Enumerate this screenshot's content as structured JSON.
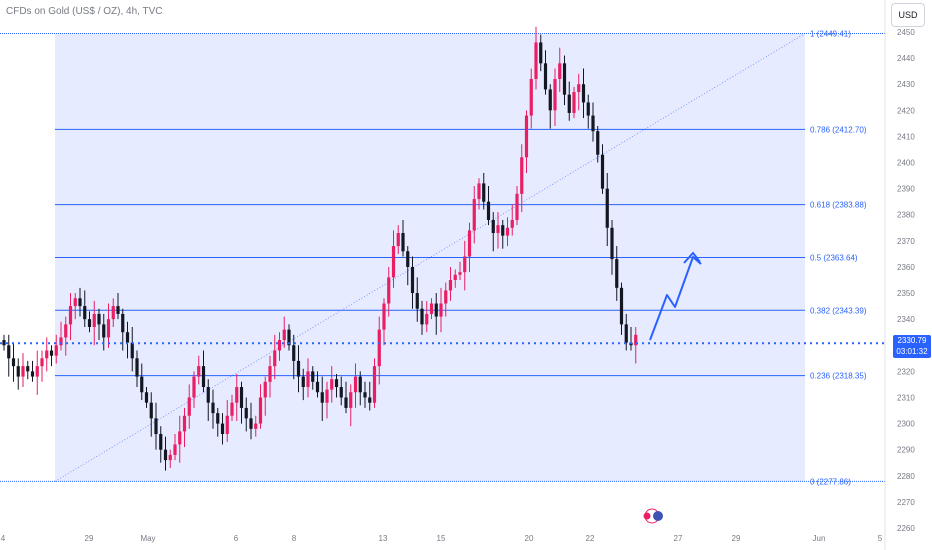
{
  "header": {
    "title": "CFDs on Gold (US$ / OZ), 4h, TVC",
    "currency_label": "USD"
  },
  "price_tag": {
    "price": "2330.79",
    "countdown": "03:01:32"
  },
  "colors": {
    "up": "#e91e63",
    "down": "#131722",
    "fib_line": "#2962ff",
    "fib_fill": "#e3e7ff",
    "arrow": "#2962ff"
  },
  "chart_data": {
    "type": "candlestick",
    "title": "CFDs on Gold (US$ / OZ), 4h, TVC",
    "ylim": [
      2260,
      2450
    ],
    "y_ticks": [
      2260,
      2270,
      2280,
      2290,
      2300,
      2310,
      2320,
      2330,
      2340,
      2350,
      2360,
      2370,
      2380,
      2390,
      2400,
      2410,
      2420,
      2430,
      2440,
      2450
    ],
    "x_tick_labels": [
      "4",
      "29",
      "May",
      "6",
      "8",
      "13",
      "15",
      "20",
      "22",
      "27",
      "29",
      "Jun",
      "5"
    ],
    "current_price": 2330.79,
    "fibonacci_levels": [
      {
        "ratio": "1",
        "price": 2449.41,
        "label": "1 (2449.41)"
      },
      {
        "ratio": "0.786",
        "price": 2412.7,
        "label": "0.786 (2412.70)"
      },
      {
        "ratio": "0.618",
        "price": 2383.88,
        "label": "0.618 (2383.88)"
      },
      {
        "ratio": "0.5",
        "price": 2363.64,
        "label": "0.5 (2363.64)"
      },
      {
        "ratio": "0.382",
        "price": 2343.39,
        "label": "0.382 (2343.39)"
      },
      {
        "ratio": "0.236",
        "price": 2318.35,
        "label": "0.236 (2318.35)"
      },
      {
        "ratio": "0",
        "price": 2277.86,
        "label": "0 (2277.86)"
      }
    ],
    "candles_close": [
      2330,
      2325,
      2322,
      2318,
      2322,
      2320,
      2318,
      2322,
      2325,
      2328,
      2326,
      2330,
      2333,
      2338,
      2345,
      2348,
      2345,
      2340,
      2337,
      2342,
      2338,
      2333,
      2340,
      2345,
      2342,
      2335,
      2331,
      2325,
      2318,
      2312,
      2308,
      2302,
      2296,
      2290,
      2286,
      2288,
      2292,
      2297,
      2303,
      2310,
      2318,
      2322,
      2314,
      2308,
      2304,
      2300,
      2296,
      2303,
      2308,
      2314,
      2306,
      2302,
      2298,
      2300,
      2310,
      2316,
      2322,
      2328,
      2332,
      2336,
      2330,
      2324,
      2318,
      2314,
      2320,
      2316,
      2312,
      2308,
      2313,
      2317,
      2314,
      2310,
      2306,
      2312,
      2318,
      2312,
      2310,
      2308,
      2322,
      2336,
      2346,
      2356,
      2368,
      2373,
      2366,
      2360,
      2350,
      2344,
      2338,
      2342,
      2346,
      2341,
      2346,
      2351,
      2355,
      2357,
      2358,
      2364,
      2374,
      2386,
      2392,
      2385,
      2378,
      2373,
      2376,
      2372,
      2375,
      2378,
      2388,
      2402,
      2418,
      2432,
      2446,
      2438,
      2428,
      2420,
      2432,
      2438,
      2426,
      2419,
      2427,
      2430,
      2423,
      2418,
      2412,
      2403,
      2390,
      2375,
      2363,
      2352,
      2338,
      2331,
      2330,
      2334
    ]
  }
}
